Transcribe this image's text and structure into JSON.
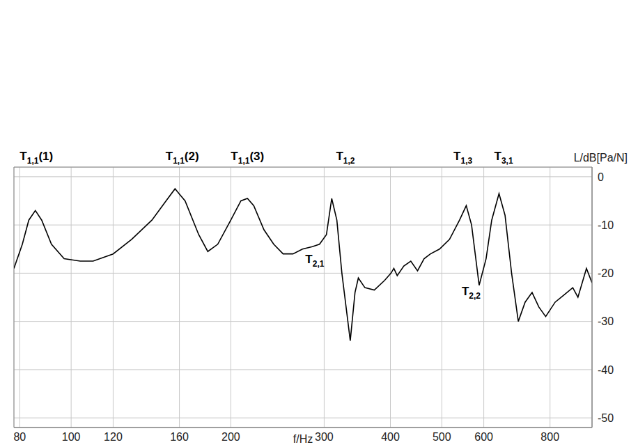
{
  "chart_data": {
    "type": "line",
    "x_label": "f/Hz",
    "y_label": "L/dB[Pa/N]",
    "x": [
      78,
      80.9,
      83.2,
      85.6,
      88,
      91.8,
      97,
      104,
      110,
      120,
      130,
      142,
      151,
      157,
      164,
      174,
      181,
      189,
      200,
      209,
      215,
      221,
      231,
      241,
      251,
      262,
      273,
      285,
      294,
      303,
      310,
      317,
      324,
      336,
      343,
      348,
      358,
      373,
      390,
      401,
      406,
      412,
      424,
      437,
      450,
      463,
      476,
      495,
      517,
      540,
      556,
      569,
      588,
      606,
      621,
      641,
      658,
      677,
      697,
      718,
      740,
      762,
      785,
      818,
      850,
      883,
      903,
      937,
      960
    ],
    "values": [
      -19,
      -14,
      -9,
      -7,
      -9,
      -14,
      -17,
      -17.5,
      -17.5,
      -16,
      -13,
      -9,
      -5,
      -2.5,
      -5,
      -12,
      -15.5,
      -14,
      -9,
      -5,
      -4.5,
      -6,
      -11,
      -14,
      -16,
      -16,
      -15,
      -14.5,
      -14,
      -12,
      -4.5,
      -9,
      -20,
      -34,
      -24,
      -21,
      -23,
      -23.5,
      -21.5,
      -20,
      -19,
      -20.5,
      -18.5,
      -17.5,
      -19.5,
      -17,
      -16,
      -15,
      -13,
      -9,
      -6,
      -10,
      -22.5,
      -17,
      -9,
      -3.5,
      -8,
      -20,
      -30,
      -26,
      -24,
      -27,
      -29,
      -26,
      -24.5,
      -23,
      -25,
      -19,
      -22
    ],
    "color": "#000000",
    "xlim": [
      78,
      960
    ],
    "ylim": [
      -52,
      2
    ],
    "xticks": [
      80,
      100,
      120,
      160,
      200,
      300,
      400,
      500,
      600,
      800
    ],
    "yticks": [
      -50,
      -40,
      -30,
      -20,
      -10,
      0
    ],
    "log": "x",
    "grid": true,
    "annotations": [
      {
        "text": "T1,1(1)",
        "x": 86
      },
      {
        "text": "T1,1(2)",
        "x": 162
      },
      {
        "text": "T1,1(3)",
        "x": 215
      },
      {
        "text": "T1,2",
        "x": 329
      },
      {
        "text": "T1,3",
        "x": 548
      },
      {
        "text": "T3,1",
        "x": 654
      },
      {
        "text": "T2,1",
        "x": 288,
        "y": -17
      },
      {
        "text": "T2,2",
        "x": 568,
        "y": -23.7
      }
    ]
  }
}
